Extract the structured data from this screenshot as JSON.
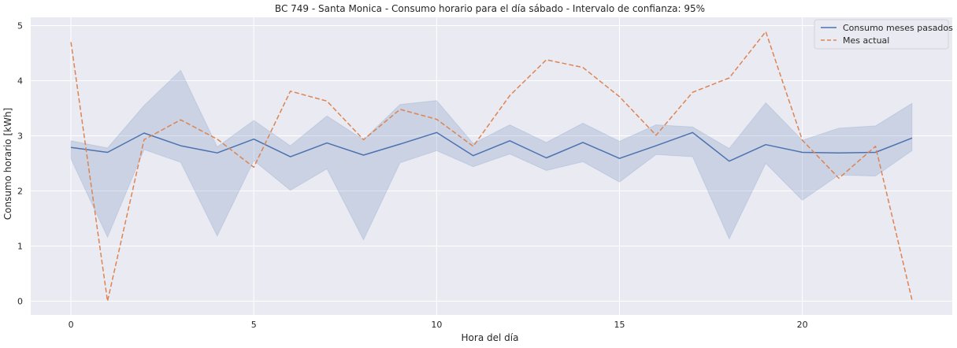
{
  "chart_data": {
    "type": "line",
    "title": "BC 749 - Santa Monica - Consumo horario para el día sábado - Intervalo de confianza: 95%",
    "xlabel": "Hora del día",
    "ylabel": "Consumo horario [kWh]",
    "xlim": [
      -1.1,
      24.1
    ],
    "ylim": [
      -0.25,
      5.15
    ],
    "xticks": [
      0,
      5,
      10,
      15,
      20
    ],
    "yticks": [
      0,
      1,
      2,
      3,
      4,
      5
    ],
    "grid": true,
    "legend_position": "top-right",
    "x": [
      0,
      1,
      2,
      3,
      4,
      5,
      6,
      7,
      8,
      9,
      10,
      11,
      12,
      13,
      14,
      15,
      16,
      17,
      18,
      19,
      20,
      21,
      22,
      23
    ],
    "series": [
      {
        "name": "Consumo meses pasados",
        "style": "solid",
        "color": "#4c72b0",
        "values": [
          2.79,
          2.7,
          3.05,
          2.82,
          2.69,
          2.94,
          2.62,
          2.87,
          2.65,
          2.85,
          3.06,
          2.64,
          2.91,
          2.6,
          2.88,
          2.59,
          2.82,
          3.06,
          2.54,
          2.84,
          2.7,
          2.69,
          2.7,
          2.96
        ],
        "ci_lower": [
          2.58,
          1.16,
          2.75,
          2.52,
          1.18,
          2.55,
          2.01,
          2.4,
          1.11,
          2.51,
          2.73,
          2.44,
          2.67,
          2.37,
          2.53,
          2.16,
          2.66,
          2.62,
          1.13,
          2.5,
          1.83,
          2.29,
          2.27,
          2.73
        ],
        "ci_upper": [
          2.91,
          2.78,
          3.55,
          4.19,
          2.8,
          3.28,
          2.82,
          3.36,
          2.93,
          3.57,
          3.64,
          2.86,
          3.2,
          2.88,
          3.23,
          2.9,
          3.2,
          3.16,
          2.77,
          3.6,
          2.92,
          3.14,
          3.18,
          3.59
        ]
      },
      {
        "name": "Mes actual",
        "style": "dashed",
        "color": "#dd8452",
        "values": [
          4.7,
          0.0,
          2.93,
          3.29,
          2.94,
          2.43,
          3.81,
          3.63,
          2.93,
          3.48,
          3.3,
          2.81,
          3.73,
          4.38,
          4.24,
          3.71,
          3.01,
          3.79,
          4.05,
          4.89,
          2.92,
          2.23,
          2.81,
          0.02
        ]
      }
    ]
  }
}
